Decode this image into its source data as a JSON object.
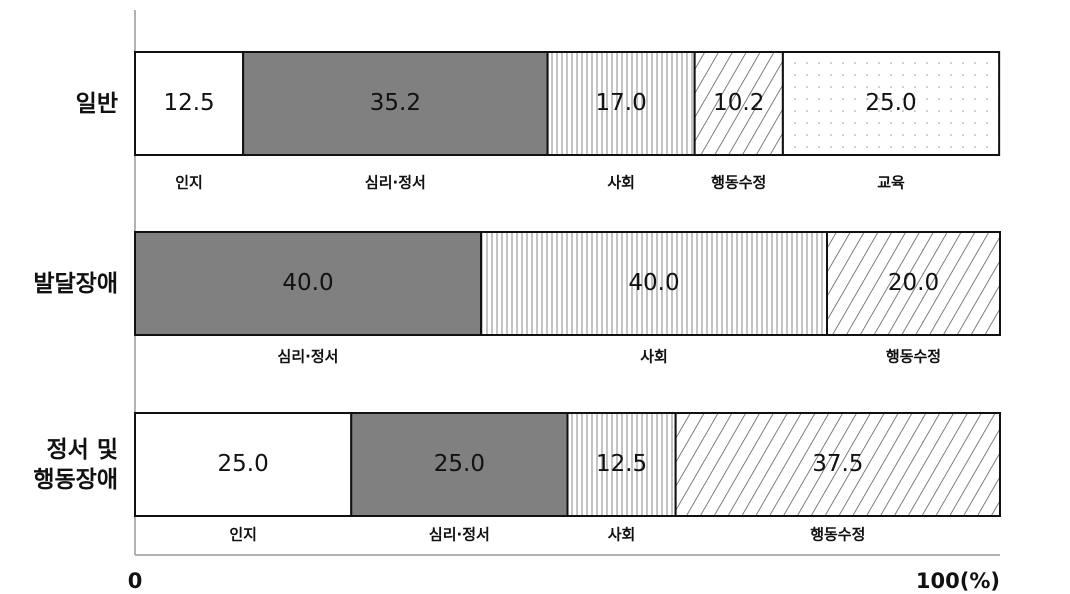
{
  "chart_data": {
    "type": "stacked_bar_horizontal",
    "categories": [
      "일반",
      "발달장애",
      "정서 및\n행동장애"
    ],
    "series": [
      {
        "name": "인지",
        "color": "#ffffff",
        "pattern": "solid",
        "values": [
          12.5,
          null,
          25.0
        ],
        "value_labels": [
          "12.5",
          null,
          "25.0"
        ]
      },
      {
        "name": "심리·정서",
        "color": "#808080",
        "pattern": "solid",
        "values": [
          35.2,
          40.0,
          25.0
        ],
        "value_labels": [
          "35.2",
          "40.0",
          "25.0"
        ]
      },
      {
        "name": "사회",
        "color": "#ffffff",
        "pattern": "vertical",
        "values": [
          17.0,
          40.0,
          12.5
        ],
        "value_labels": [
          "17.0",
          "40.0",
          "12.5"
        ]
      },
      {
        "name": "행동수정",
        "color": "#ffffff",
        "pattern": "diagonal",
        "values": [
          10.2,
          20.0,
          37.5
        ],
        "value_labels": [
          "10.2",
          "20.0",
          "37.5"
        ]
      },
      {
        "name": "교육",
        "color": "#ffffff",
        "pattern": "dots",
        "values": [
          25.0,
          null,
          null
        ],
        "value_labels": [
          "25.0",
          null,
          null
        ]
      }
    ],
    "xlim": [
      0,
      100
    ],
    "xticks": [
      0,
      {
        "value": 100,
        "label": "100(%)"
      }
    ]
  }
}
